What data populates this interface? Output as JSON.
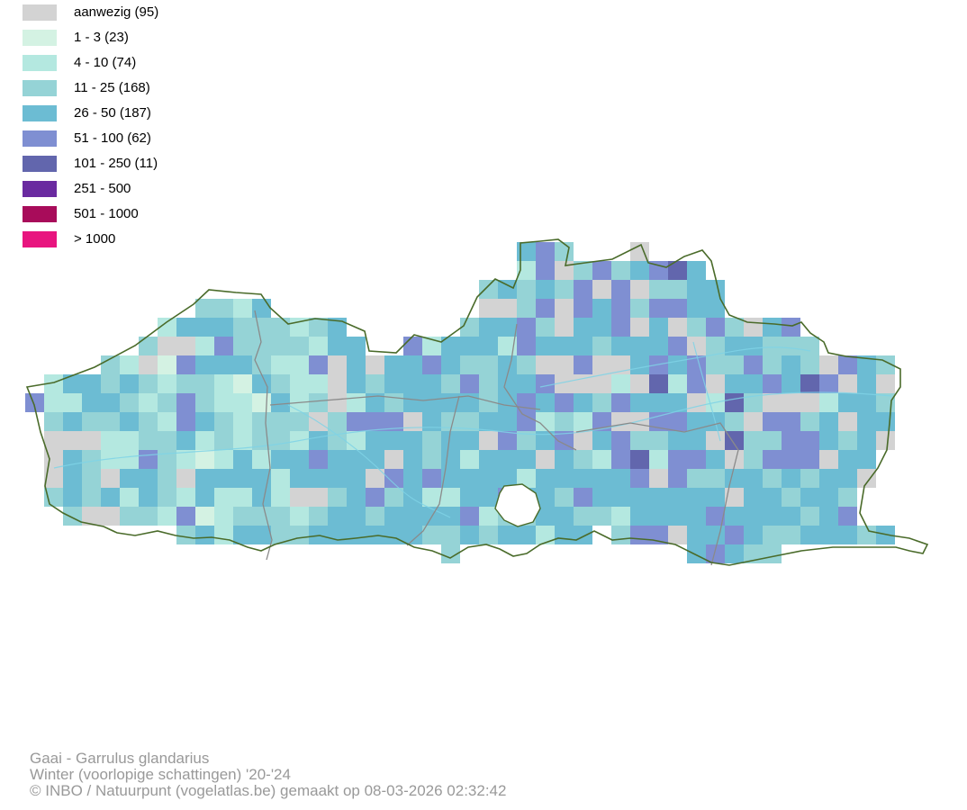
{
  "legend": {
    "items": [
      {
        "label": "aanwezig (95)",
        "color": "#d3d3d3"
      },
      {
        "label": "1 - 3 (23)",
        "color": "#d4f2e3"
      },
      {
        "label": "4 - 10 (74)",
        "color": "#b4e8e0"
      },
      {
        "label": "11 - 25 (168)",
        "color": "#95d3d6"
      },
      {
        "label": "26 - 50 (187)",
        "color": "#6cbcd3"
      },
      {
        "label": "51 - 100 (62)",
        "color": "#7f8fd2"
      },
      {
        "label": "101 - 250 (11)",
        "color": "#6266ad"
      },
      {
        "label": "251 - 500",
        "color": "#6a2aa0"
      },
      {
        "label": "501 - 1000",
        "color": "#a80c5a"
      },
      {
        "label": "> 1000",
        "color": "#e8157f"
      }
    ]
  },
  "map": {
    "border_color": "#4a6b2a",
    "province_color": "#8a8a8a",
    "river_color": "#7fd3e6"
  },
  "footer": {
    "species": "Gaai - Garrulus glandarius",
    "season": "Winter (voorlopige schattingen) '20-'24",
    "credit": "© INBO / Natuurpunt (vogelatlas.be) gemaakt op 08-03-2026 02:32:42"
  }
}
